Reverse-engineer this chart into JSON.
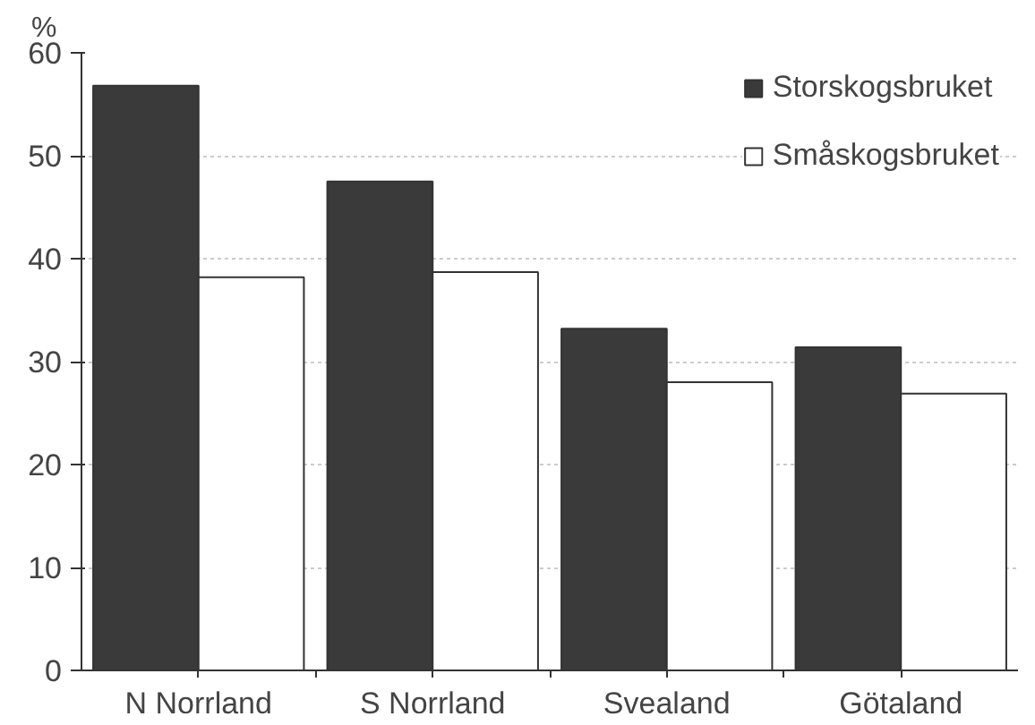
{
  "chart_data": {
    "type": "bar",
    "ylabel": "%",
    "categories": [
      "N Norrland",
      "S Norrland",
      "Svealand",
      "Götaland"
    ],
    "series": [
      {
        "name": "Storskogsbruket",
        "color": "#3a3a3a",
        "values": [
          56.8,
          47.5,
          33.2,
          31.4
        ]
      },
      {
        "name": "Småskogsbruket",
        "color": "#ffffff",
        "values": [
          38.2,
          38.7,
          28.0,
          26.9
        ]
      }
    ],
    "ylim": [
      0,
      60
    ],
    "yticks": [
      0,
      10,
      20,
      30,
      40,
      50,
      60
    ],
    "grid": "y",
    "legend": "top right"
  }
}
